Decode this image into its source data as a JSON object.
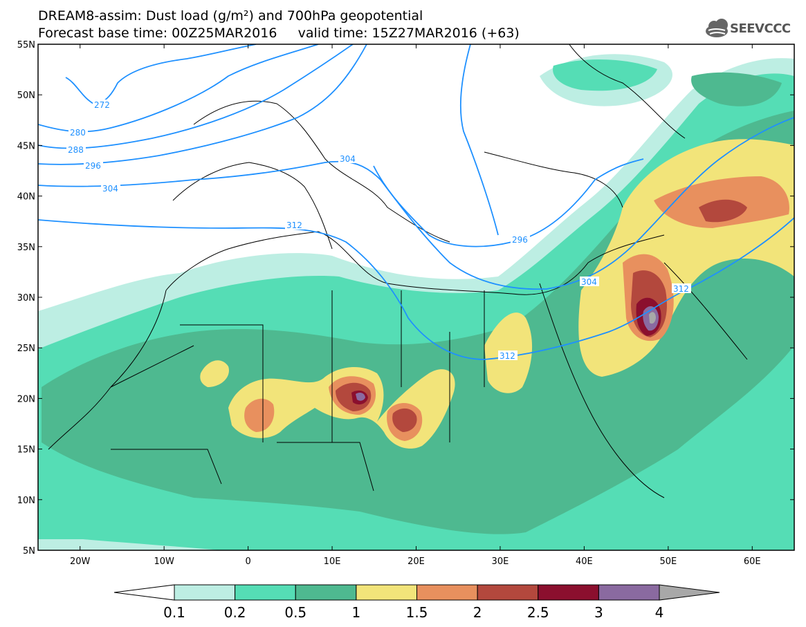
{
  "header": {
    "title_line1": "DREAM8-assim: Dust load (g/m²) and 700hPa geopotential",
    "title_line2": "Forecast base time: 00Z25MAR2016     valid time: 15Z27MAR2016 (+63)",
    "logo_text": "SEEVCCC"
  },
  "map": {
    "lat_ticks": [
      "55N",
      "50N",
      "45N",
      "40N",
      "35N",
      "30N",
      "25N",
      "20N",
      "15N",
      "10N",
      "5N"
    ],
    "lon_ticks": [
      "20W",
      "10W",
      "0",
      "10E",
      "20E",
      "30E",
      "40E",
      "50E",
      "60E"
    ],
    "contour_color": "#1e90ff",
    "contour_labels": [
      "272",
      "280",
      "288",
      "296",
      "304",
      "312",
      "304",
      "296",
      "304",
      "312",
      "312"
    ]
  },
  "colorbar": {
    "labels": [
      "0.1",
      "0.2",
      "0.5",
      "1",
      "1.5",
      "2",
      "2.5",
      "3",
      "4"
    ],
    "colors": [
      "#ffffff",
      "#bdeee3",
      "#55ddb5",
      "#4eb990",
      "#f2e47a",
      "#e8905e",
      "#b3483d",
      "#8b0f2e",
      "#8a6aa0",
      "#a8a8a8"
    ]
  },
  "dust_colors": {
    "c01": "#bdeee3",
    "c02": "#55ddb5",
    "c05": "#4eb990",
    "c1": "#f2e47a",
    "c15": "#e8905e",
    "c2": "#b3483d",
    "c25": "#8b0f2e",
    "c3": "#8a6aa0",
    "c4": "#a8a8a8"
  }
}
